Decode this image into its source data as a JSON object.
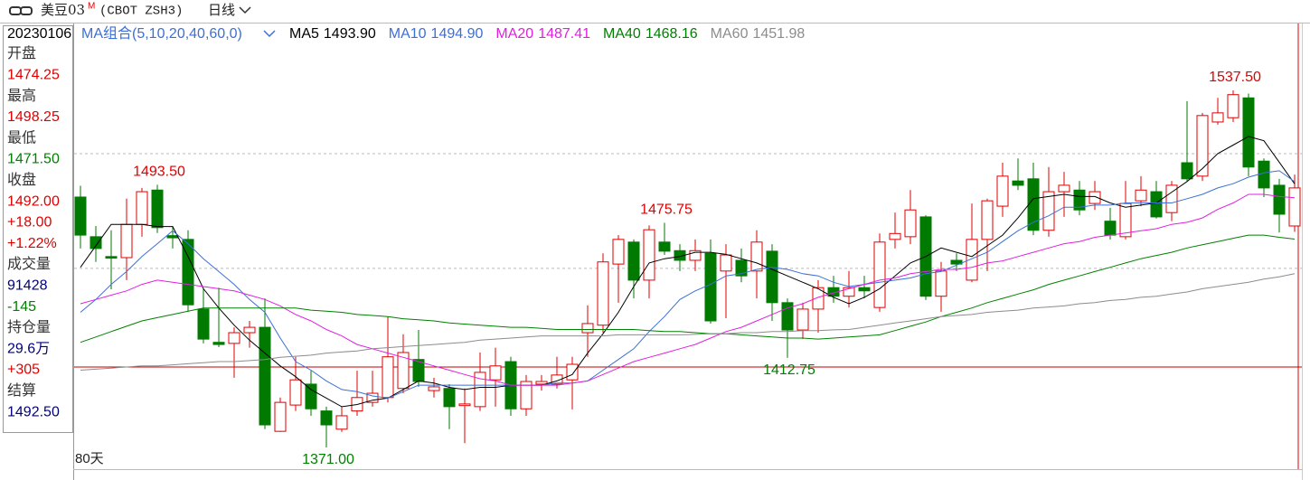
{
  "header": {
    "symbol": "美豆03",
    "badge": "M",
    "code": "(CBOT ZSH3)",
    "period": "日线"
  },
  "info": [
    {
      "text": "20230106",
      "color": "#000000",
      "small": true
    },
    {
      "text": "开盘",
      "color": "#333333"
    },
    {
      "text": "1474.25",
      "color": "#e00000"
    },
    {
      "text": "最高",
      "color": "#333333"
    },
    {
      "text": "1498.25",
      "color": "#e00000"
    },
    {
      "text": "最低",
      "color": "#333333"
    },
    {
      "text": "1471.50",
      "color": "#008000"
    },
    {
      "text": "收盘",
      "color": "#333333"
    },
    {
      "text": "1492.00",
      "color": "#e00000"
    },
    {
      "text": "+18.00",
      "color": "#e00000"
    },
    {
      "text": "+1.22%",
      "color": "#e00000"
    },
    {
      "text": "成交量",
      "color": "#333333"
    },
    {
      "text": "91428",
      "color": "#000080"
    },
    {
      "text": "-145",
      "color": "#008000"
    },
    {
      "text": "持仓量",
      "color": "#333333"
    },
    {
      "text": "29.6万",
      "color": "#000080"
    },
    {
      "text": "+305",
      "color": "#e00000"
    },
    {
      "text": "结算",
      "color": "#333333"
    },
    {
      "text": "1492.50",
      "color": "#000080"
    }
  ],
  "chart_data": {
    "type": "candlestick",
    "ma_title": "MA组合(5,10,20,40,60,0)",
    "window_label": "80天",
    "up_color": "#e00000",
    "down_color": "#007a00",
    "ylim": [
      1361.7,
      1569.1
    ],
    "gridlines": [
      1454.5,
      1508
    ],
    "reference_line": 1408.5,
    "open": [
      1487.75,
      1469.25,
      1460,
      1459.5,
      1475,
      1491,
      1469.75,
      1468,
      1435.5,
      1420,
      1419.5,
      1424.5,
      1427,
      1378.5,
      1390.75,
      1400.5,
      1388,
      1379.5,
      1388,
      1392,
      1394.25,
      1398.5,
      1412,
      1397.5,
      1398.5,
      1390.5,
      1390,
      1402.5,
      1411,
      1389,
      1400.5,
      1400.5,
      1402.5,
      1424.5,
      1428,
      1456.5,
      1466.75,
      1449,
      1466.75,
      1462.75,
      1458.25,
      1461.5,
      1453.25,
      1458.25,
      1453.25,
      1462.5,
      1438.5,
      1425.75,
      1435.5,
      1445.5,
      1441.5,
      1445.5,
      1436.25,
      1468,
      1469.25,
      1478.5,
      1441.5,
      1458.25,
      1449,
      1468,
      1483.5,
      1495.25,
      1496.25,
      1472.25,
      1490.25,
      1491,
      1484.75,
      1476.5,
      1469.25,
      1486,
      1490.25,
      1480.5,
      1503.75,
      1497.5,
      1522.75,
      1524.75,
      1534,
      1504.5,
      1493.25,
      1474.25
    ],
    "high": [
      1493,
      1474.25,
      1472.25,
      1487,
      1492,
      1493.5,
      1474.25,
      1472.25,
      1444.75,
      1445.5,
      1427,
      1430,
      1440.5,
      1394.25,
      1413.25,
      1406.75,
      1390,
      1390,
      1406.75,
      1406.75,
      1432,
      1423.75,
      1425.75,
      1403.5,
      1400.5,
      1398.5,
      1415.25,
      1417.5,
      1413.25,
      1404.75,
      1404.75,
      1413.25,
      1413.25,
      1437.25,
      1461.5,
      1470,
      1468,
      1474.5,
      1475.75,
      1465.75,
      1468,
      1468,
      1465.75,
      1463.75,
      1472.25,
      1465.75,
      1440.5,
      1438.5,
      1449,
      1451,
      1453.25,
      1451,
      1470.75,
      1480.5,
      1491,
      1479.25,
      1457.5,
      1461.5,
      1484.75,
      1487,
      1503.75,
      1505.75,
      1503.75,
      1501.75,
      1499.5,
      1495.25,
      1495.25,
      1482.75,
      1495.25,
      1497.5,
      1495.25,
      1495.25,
      1532.5,
      1527,
      1534,
      1537.5,
      1536,
      1505.75,
      1496.25,
      1498.25
    ],
    "low": [
      1463.75,
      1457.5,
      1444.75,
      1449,
      1469.25,
      1471,
      1463.75,
      1434.25,
      1419.5,
      1417.75,
      1403.5,
      1417.5,
      1379.5,
      1378.25,
      1388,
      1385.75,
      1371,
      1378.25,
      1385.75,
      1390,
      1392,
      1396.25,
      1399.25,
      1394.25,
      1379.5,
      1373,
      1388,
      1390,
      1385.75,
      1385.75,
      1397.5,
      1398.5,
      1388.75,
      1413.25,
      1424.5,
      1438.5,
      1440.5,
      1440.5,
      1460.75,
      1453.25,
      1453.25,
      1428.75,
      1431.25,
      1448,
      1440.5,
      1430,
      1412.75,
      1421.5,
      1424.5,
      1438.5,
      1436.25,
      1440.5,
      1434.25,
      1463.75,
      1465.75,
      1439.75,
      1434.25,
      1453.25,
      1448,
      1453.25,
      1478.5,
      1491,
      1470,
      1469.25,
      1478.5,
      1479.25,
      1481.75,
      1468,
      1468,
      1483.5,
      1477.75,
      1476.5,
      1495.25,
      1495.25,
      1521.5,
      1522.75,
      1497.5,
      1487.75,
      1471.25,
      1471.5
    ],
    "close": [
      1470,
      1463.75,
      1459.25,
      1475,
      1490.25,
      1473.5,
      1468.75,
      1437.5,
      1421.5,
      1419,
      1424.5,
      1427,
      1381.5,
      1392,
      1402.5,
      1389,
      1381.5,
      1385.75,
      1394.25,
      1396.25,
      1413.25,
      1415.25,
      1401.75,
      1399.25,
      1390,
      1391.25,
      1406,
      1409,
      1389,
      1401.75,
      1401.75,
      1404.75,
      1409.75,
      1428.75,
      1457.5,
      1468,
      1449,
      1472.5,
      1462.5,
      1458.25,
      1462.75,
      1430,
      1460.75,
      1451,
      1466.75,
      1438.5,
      1425.75,
      1435.5,
      1445.5,
      1441.5,
      1445.5,
      1444,
      1466.75,
      1470.75,
      1481.75,
      1441.5,
      1453.25,
      1456.5,
      1468,
      1486,
      1497.5,
      1493.25,
      1472.25,
      1490.25,
      1493.25,
      1481.75,
      1490.25,
      1470,
      1484.75,
      1491,
      1478.5,
      1493.25,
      1496.25,
      1525.75,
      1527,
      1535.5,
      1501.75,
      1492,
      1479.75,
      1492
    ],
    "series": [
      {
        "name": "MA5",
        "color": "#000000",
        "legend_value": "1493.90",
        "values": [
          1455,
          1465,
          1475,
          1475,
          1475,
          1474,
          1474,
          1460,
          1445,
          1436,
          1428,
          1421,
          1415,
          1409,
          1404,
          1398,
          1394,
          1390,
          1391,
          1393,
          1394,
          1398,
          1402,
          1401,
          1399,
          1398,
          1399,
          1399,
          1400,
          1400,
          1400,
          1402,
          1405,
          1415,
          1424,
          1434,
          1446,
          1457,
          1459,
          1460,
          1462,
          1462,
          1461,
          1459,
          1457,
          1454,
          1451,
          1448,
          1445,
          1441,
          1438,
          1441,
          1445,
          1451,
          1457,
          1460,
          1464,
          1462,
          1460,
          1465,
          1470,
          1478,
          1487,
          1488,
          1489,
          1488,
          1488,
          1485,
          1483,
          1484,
          1485,
          1490,
          1495,
          1501,
          1508,
          1512,
          1516,
          1514,
          1504,
          1493.9
        ]
      },
      {
        "name": "MA10",
        "color": "#3c6fd8",
        "legend_value": "1494.90",
        "values": [
          1434,
          1440,
          1447,
          1453,
          1460,
          1466,
          1472,
          1466,
          1459,
          1453,
          1447,
          1440,
          1434,
          1422,
          1411,
          1407,
          1402,
          1398,
          1397,
          1395,
          1394,
          1397,
          1400,
          1400,
          1400,
          1400,
          1400,
          1400,
          1400,
          1400,
          1400,
          1401,
          1401,
          1402,
          1407,
          1412,
          1417,
          1425,
          1432,
          1440,
          1444,
          1447,
          1451,
          1452,
          1454,
          1455,
          1454,
          1452,
          1451,
          1448,
          1446,
          1447,
          1448,
          1449,
          1450,
          1452,
          1453,
          1456,
          1459,
          1462,
          1467,
          1472,
          1476,
          1479,
          1483,
          1483,
          1484,
          1484,
          1485,
          1485,
          1485,
          1485,
          1487,
          1489,
          1492,
          1494,
          1497,
          1499,
          1500,
          1494.9
        ]
      },
      {
        "name": "MA20",
        "color": "#e020e0",
        "legend_value": "1487.41",
        "values": [
          1438,
          1440,
          1442,
          1444,
          1447,
          1449,
          1448,
          1447,
          1446,
          1445,
          1444,
          1442,
          1440,
          1437,
          1433,
          1430,
          1426,
          1423,
          1419,
          1417,
          1415,
          1413,
          1411,
          1409,
          1407,
          1405,
          1403,
          1402,
          1400,
          1400,
          1400,
          1400,
          1401,
          1402,
          1405,
          1408,
          1411,
          1413,
          1415,
          1417,
          1419,
          1422,
          1425,
          1427,
          1430,
          1433,
          1436,
          1438,
          1441,
          1443,
          1445,
          1447,
          1449,
          1450,
          1452,
          1453,
          1454,
          1454,
          1455,
          1457,
          1458,
          1460,
          1462,
          1464,
          1466,
          1467,
          1469,
          1470,
          1471,
          1472,
          1473,
          1475,
          1476,
          1478,
          1482,
          1485,
          1489,
          1489,
          1488,
          1487.41
        ]
      },
      {
        "name": "MA40",
        "color": "#008000",
        "legend_value": "1468.16",
        "values": [
          1420,
          1422.5,
          1425,
          1427.5,
          1430,
          1431.5,
          1433,
          1434.5,
          1436,
          1436,
          1436,
          1436,
          1436,
          1436,
          1436,
          1435,
          1434.5,
          1434,
          1433,
          1432.5,
          1432,
          1431,
          1430.5,
          1430,
          1429,
          1428.5,
          1428,
          1427.5,
          1427,
          1427,
          1426.5,
          1426,
          1426,
          1426,
          1426,
          1426,
          1426,
          1425.5,
          1425,
          1425,
          1424.5,
          1424,
          1424,
          1423.5,
          1423,
          1422.5,
          1422,
          1422,
          1421.5,
          1422,
          1422.5,
          1423,
          1423.5,
          1425.5,
          1427.5,
          1429.5,
          1432,
          1434,
          1436,
          1438.5,
          1440.5,
          1442.5,
          1444.5,
          1447,
          1449,
          1451,
          1453,
          1455,
          1457,
          1459,
          1460.5,
          1462,
          1464,
          1465.5,
          1467,
          1468.5,
          1470,
          1470,
          1469,
          1468.16
        ]
      },
      {
        "name": "MA60",
        "color": "#8c8c8c",
        "legend_value": "1451.98",
        "values": [
          1407,
          1407.5,
          1408,
          1408.5,
          1409,
          1409,
          1409.5,
          1410,
          1410.5,
          1411,
          1411,
          1411.5,
          1412,
          1413,
          1413.5,
          1414,
          1415,
          1415.5,
          1416,
          1417,
          1417.5,
          1418,
          1418.5,
          1419,
          1419.5,
          1420,
          1421,
          1421.5,
          1422,
          1422.5,
          1423,
          1423,
          1423,
          1423,
          1423,
          1423.5,
          1423.5,
          1423.5,
          1423.5,
          1423.5,
          1423.7,
          1424,
          1424,
          1424.5,
          1424.5,
          1425,
          1425,
          1425.5,
          1425.5,
          1425.8,
          1426,
          1427,
          1428,
          1429,
          1430,
          1431,
          1432,
          1432.5,
          1433,
          1434,
          1434.5,
          1435,
          1436,
          1436.5,
          1437,
          1438,
          1438.5,
          1439.5,
          1440,
          1441,
          1441.5,
          1442.5,
          1443.5,
          1445,
          1446,
          1447,
          1448,
          1449.5,
          1450.5,
          1451.98
        ]
      }
    ],
    "annotations": [
      {
        "value": 1493.5,
        "label": "1493.50"
      },
      {
        "value": 1371,
        "label": "1371.00"
      },
      {
        "value": 1475.75,
        "label": "1475.75"
      },
      {
        "value": 1412.75,
        "label": "1412.75"
      },
      {
        "value": 1537.5,
        "label": "1537.50"
      }
    ]
  }
}
